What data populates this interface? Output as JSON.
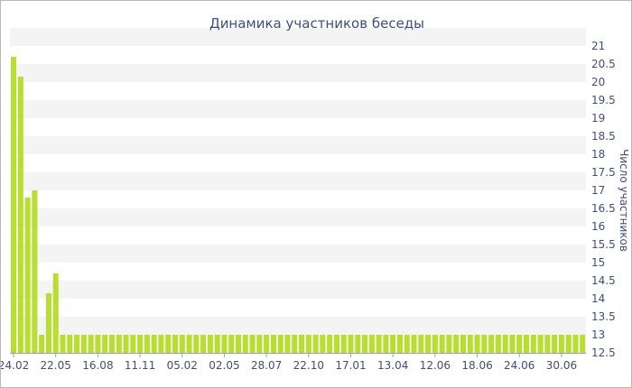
{
  "chart_data": {
    "type": "bar",
    "title": "Динамика участников беседы",
    "xlabel": "",
    "ylabel": "Число участников",
    "ylim": [
      12.5,
      21
    ],
    "y_ticks": [
      "12.5",
      "13",
      "13.5",
      "14",
      "14.5",
      "15",
      "15.5",
      "16",
      "16.5",
      "17",
      "17.5",
      "18",
      "18.5",
      "19",
      "19.5",
      "20",
      "20.5",
      "21"
    ],
    "x_tick_labels": [
      "24.02",
      "22.05",
      "16.08",
      "11.11",
      "05.02",
      "02.05",
      "28.07",
      "22.10",
      "17.01",
      "13.04",
      "12.06",
      "18.06",
      "24.06",
      "30.06"
    ],
    "x_tick_bar_index": [
      0,
      6,
      12,
      18,
      24,
      30,
      36,
      42,
      48,
      54,
      60,
      66,
      72,
      78
    ],
    "values": [
      20.7,
      20.15,
      16.8,
      17.0,
      13.0,
      14.15,
      14.7,
      13,
      13,
      13,
      13,
      13,
      13,
      13,
      13,
      13,
      13,
      13,
      13,
      13,
      13,
      13,
      13,
      13,
      13,
      13,
      13,
      13,
      13,
      13,
      13,
      13,
      13,
      13,
      13,
      13,
      13,
      13,
      13,
      13,
      13,
      13,
      13,
      13,
      13,
      13,
      13,
      13,
      13,
      13,
      13,
      13,
      13,
      13,
      13,
      13,
      13,
      13,
      13,
      13,
      13,
      13,
      13,
      13,
      13,
      13,
      13,
      13,
      13,
      13,
      13,
      13,
      13,
      13,
      13,
      13,
      13,
      13,
      13,
      13,
      13,
      13
    ],
    "bar_color": "#b8de32",
    "band_color": "#f4f4f4",
    "text_color": "#3d4f7c",
    "grid": true,
    "legend": "none"
  }
}
